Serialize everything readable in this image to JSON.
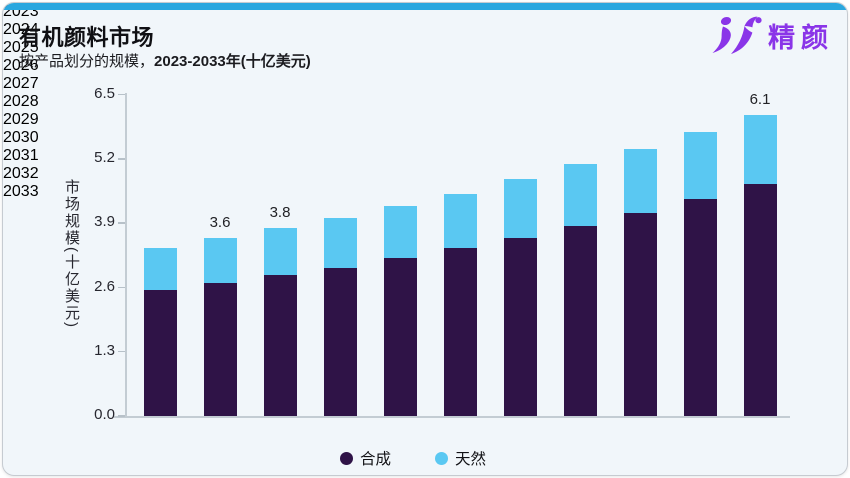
{
  "header": {
    "title": "有机颜料市场",
    "subtitle_prefix": "按产品划分的规模，",
    "subtitle_bold": "2023-2033年(十亿美元)",
    "logo_text": "精颜"
  },
  "colors": {
    "accent_top_bar": "#2AA7DF",
    "logo_purple": "#8A35E8",
    "synthetic_purple": "#2F1347",
    "natural_blue": "#5AC8F2",
    "card_background": "#F1F6FA",
    "axis_line": "#c3ccd3"
  },
  "chart_data": {
    "type": "bar",
    "stacked": true,
    "title": "有机颜料市场",
    "subtitle": "按产品划分的规模，2023-2033年(十亿美元)",
    "xlabel": "",
    "ylabel": "市场规模(十亿美元)",
    "categories": [
      "2023",
      "2024",
      "2025",
      "2026",
      "2027",
      "2028",
      "2029",
      "2030",
      "2031",
      "2032",
      "2033"
    ],
    "series": [
      {
        "name": "合成",
        "color": "#2F1347",
        "values": [
          2.55,
          2.7,
          2.85,
          3.0,
          3.2,
          3.4,
          3.6,
          3.85,
          4.1,
          4.4,
          4.7
        ]
      },
      {
        "name": "天然",
        "color": "#5AC8F2",
        "values": [
          0.85,
          0.9,
          0.95,
          1.0,
          1.05,
          1.1,
          1.2,
          1.25,
          1.3,
          1.35,
          1.4
        ]
      }
    ],
    "totals": [
      3.4,
      3.6,
      3.8,
      4.0,
      4.25,
      4.5,
      4.8,
      5.1,
      5.4,
      5.75,
      6.1
    ],
    "bar_labels": [
      "",
      "3.6",
      "3.8",
      "",
      "",
      "",
      "",
      "",
      "",
      "",
      "6.1"
    ],
    "yticks": [
      "0.0",
      "1.3",
      "2.6",
      "3.9",
      "5.2",
      "6.5"
    ],
    "ylim": [
      0,
      6.5
    ],
    "grid": false,
    "legend_position": "bottom"
  }
}
